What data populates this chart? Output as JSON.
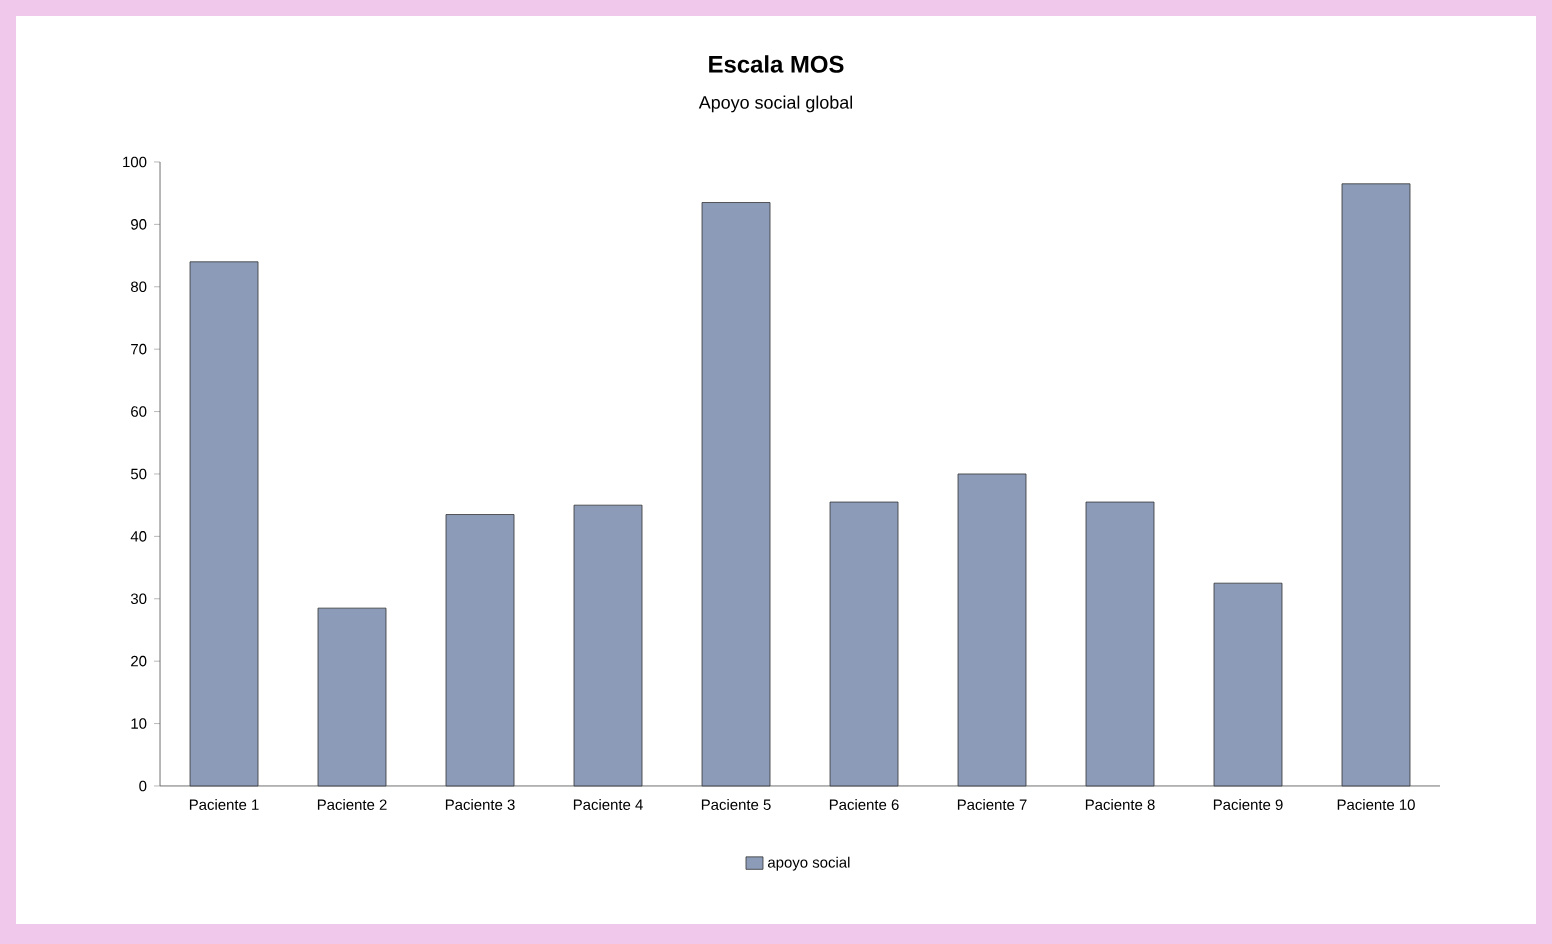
{
  "chart_data": {
    "type": "bar",
    "title": "Escala MOS",
    "subtitle": "Apoyo social global",
    "categories": [
      "Paciente 1",
      "Paciente 2",
      "Paciente 3",
      "Paciente 4",
      "Paciente 5",
      "Paciente 6",
      "Paciente 7",
      "Paciente 8",
      "Paciente 9",
      "Paciente 10"
    ],
    "series": [
      {
        "name": "apoyo social",
        "color": "#8c9cb8",
        "values": [
          84,
          28.5,
          43.5,
          45,
          93.5,
          45.5,
          50,
          45.5,
          32.5,
          96.5
        ]
      }
    ],
    "ylim": [
      0,
      100
    ],
    "yticks": [
      0,
      10,
      20,
      30,
      40,
      50,
      60,
      70,
      80,
      90,
      100
    ],
    "grid": false,
    "legend": "bottom"
  }
}
